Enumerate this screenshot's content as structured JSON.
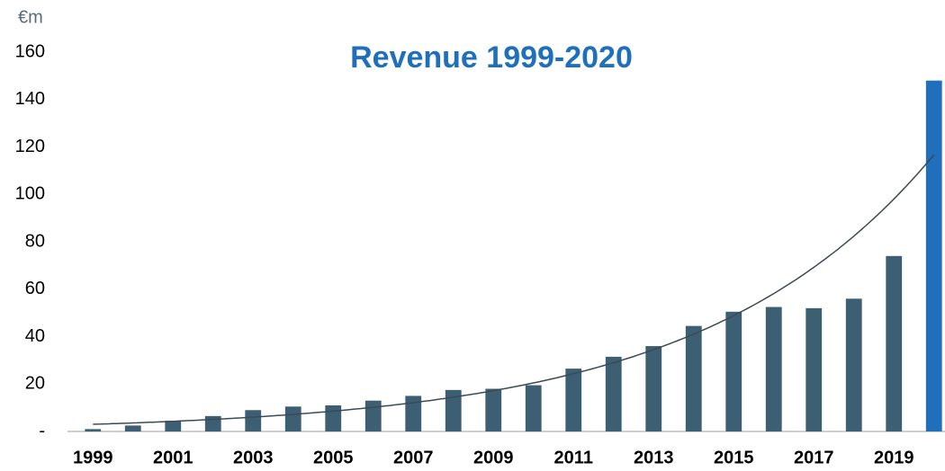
{
  "chart_data": {
    "type": "bar",
    "title": "Revenue 1999-2020",
    "unit_label": "€m",
    "categories": [
      "1999",
      null,
      "2001",
      null,
      "2003",
      null,
      "2005",
      null,
      "2007",
      null,
      "2009",
      null,
      "2011",
      null,
      "2013",
      null,
      "2015",
      null,
      "2017",
      null,
      "2019",
      null
    ],
    "values": [
      1,
      2.5,
      4.5,
      6.5,
      9,
      10.5,
      11,
      13,
      15,
      17.5,
      18,
      19.5,
      26.5,
      31.5,
      36,
      44.5,
      50.5,
      52.5,
      52,
      56,
      74,
      148
    ],
    "colors": [
      "#3c5f73",
      "#3c5f73",
      "#3c5f73",
      "#3c5f73",
      "#3c5f73",
      "#3c5f73",
      "#3c5f73",
      "#3c5f73",
      "#3c5f73",
      "#3c5f73",
      "#3c5f73",
      "#3c5f73",
      "#3c5f73",
      "#3c5f73",
      "#3c5f73",
      "#3c5f73",
      "#3c5f73",
      "#3c5f73",
      "#3c5f73",
      "#3c5f73",
      "#3c5f73",
      "#1f6fbd"
    ],
    "ylim": [
      0,
      160
    ],
    "yticks": [
      {
        "value": 0,
        "label": "-"
      },
      20,
      40,
      60,
      80,
      100,
      120,
      140,
      160
    ],
    "trendline": "exponential",
    "trendline_color": "#3c4a55",
    "grid": false
  }
}
